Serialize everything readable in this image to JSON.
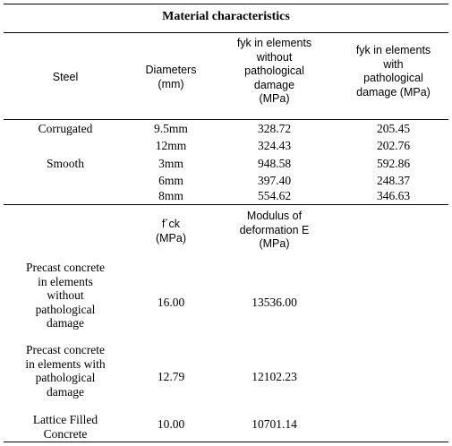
{
  "title": "Material characteristics",
  "steel_section": {
    "headers": {
      "steel": "Steel",
      "diameters": "Diameters\n(mm)",
      "fyk_without": "fyk in elements\nwithout\npathological\ndamage\n(MPa)",
      "fyk_with": "fyk in elements\nwith\npathological\ndamage (MPa)"
    },
    "types": [
      "Corrugated",
      "Smooth"
    ],
    "rows": [
      {
        "diameter": "9.5mm",
        "fyk_without": "328.72",
        "fyk_with": "205.45"
      },
      {
        "diameter": "12mm",
        "fyk_without": "324.43",
        "fyk_with": "202.76"
      },
      {
        "diameter": "3mm",
        "fyk_without": "948.58",
        "fyk_with": "592.86"
      },
      {
        "diameter": "6mm",
        "fyk_without": "397.40",
        "fyk_with": "248.37"
      },
      {
        "diameter": "8mm",
        "fyk_without": "554.62",
        "fyk_with": "346.63"
      }
    ]
  },
  "concrete_section": {
    "headers": {
      "fck": "f´ck\n(MPa)",
      "modulus": "Modulus of\ndeformation E\n(MPa)"
    },
    "rows": [
      {
        "name": "Precast concrete\nin elements\nwithout\npathological\ndamage",
        "fck": "16.00",
        "modulus": "13536.00"
      },
      {
        "name": "Precast concrete\nin elements with\npathological\ndamage",
        "fck": "12.79",
        "modulus": "12102.23"
      },
      {
        "name": "Lattice Filled\nConcrete",
        "fck": "10.00",
        "modulus": "10701.14"
      }
    ]
  }
}
